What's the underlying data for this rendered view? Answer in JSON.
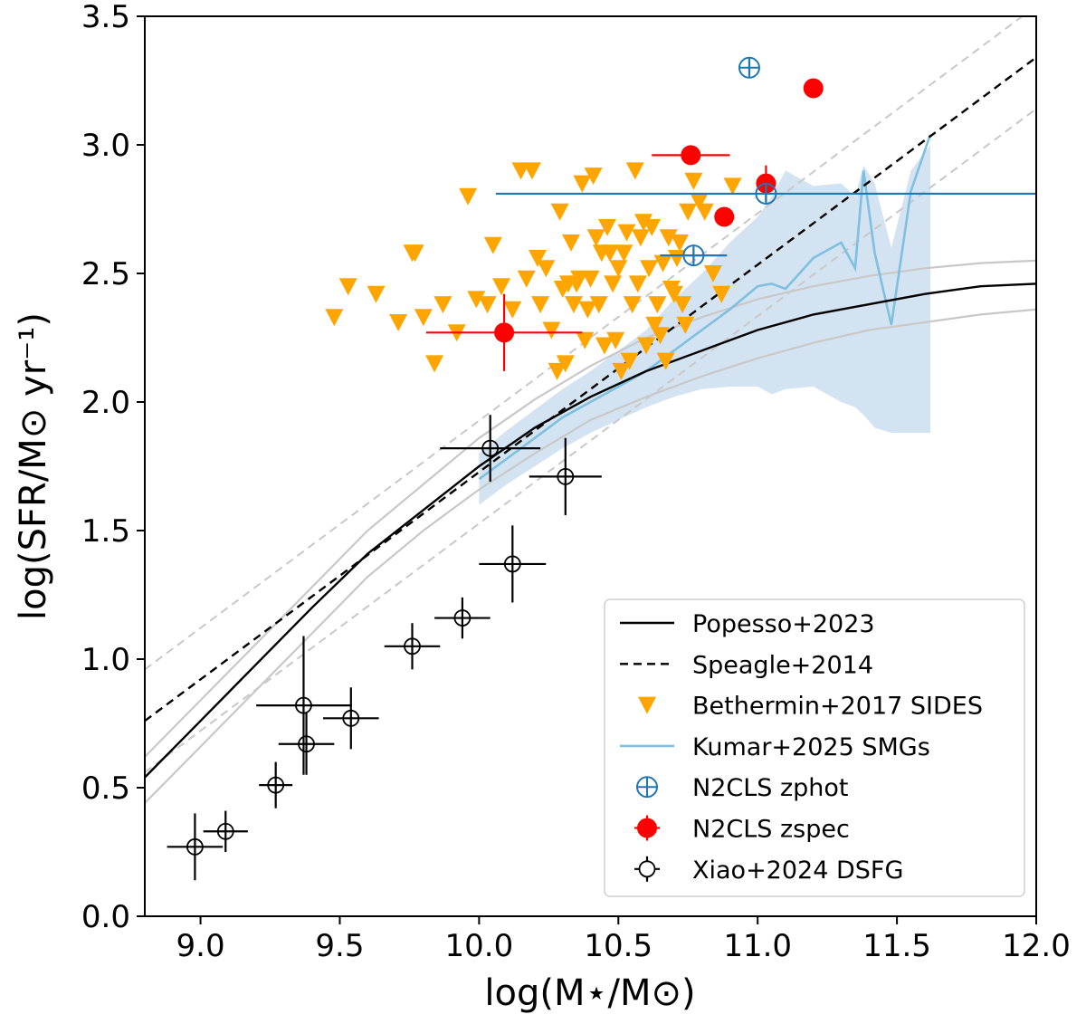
{
  "chart_data": {
    "type": "scatter",
    "xlabel": "log(M⋆/M⊙)",
    "ylabel": "log(SFR/M⊙ yr⁻¹)",
    "xlim": [
      8.8,
      12.0
    ],
    "ylim": [
      0.0,
      3.5
    ],
    "x_ticks": [
      "9.0",
      "9.5",
      "10.0",
      "10.5",
      "11.0",
      "11.5",
      "12.0"
    ],
    "y_ticks": [
      "0.0",
      "0.5",
      "1.0",
      "1.5",
      "2.0",
      "2.5",
      "3.0",
      "3.5"
    ],
    "grid": false,
    "legend_position": "lower-right",
    "colors": {
      "popesso": "#000000",
      "popesso_band": "#c8c8c8",
      "speagle": "#000000",
      "speagle_band": "#c8c8c8",
      "sides": "#ffa500",
      "kumar": "#7fbfe0",
      "kumar_band": "#c6d9ec",
      "zphot": "#1f77b4",
      "zspec": "#ff0000",
      "xiao": "#000000"
    },
    "series": [
      {
        "name": "Popesso+2023",
        "kind": "line",
        "style": "solid",
        "x": [
          8.8,
          9.0,
          9.2,
          9.4,
          9.6,
          9.8,
          10.0,
          10.2,
          10.4,
          10.6,
          10.8,
          11.0,
          11.2,
          11.4,
          11.6,
          11.8,
          12.0
        ],
        "y": [
          0.54,
          0.76,
          0.98,
          1.2,
          1.41,
          1.58,
          1.75,
          1.9,
          2.02,
          2.12,
          2.2,
          2.28,
          2.34,
          2.38,
          2.42,
          2.45,
          2.46
        ],
        "band_upper": [
          0.62,
          0.84,
          1.06,
          1.28,
          1.5,
          1.68,
          1.86,
          2.01,
          2.14,
          2.25,
          2.33,
          2.4,
          2.45,
          2.49,
          2.52,
          2.54,
          2.55
        ],
        "band_lower": [
          0.44,
          0.66,
          0.88,
          1.1,
          1.32,
          1.5,
          1.66,
          1.8,
          1.93,
          2.02,
          2.1,
          2.17,
          2.23,
          2.28,
          2.31,
          2.34,
          2.36
        ]
      },
      {
        "name": "Speagle+2014",
        "kind": "line",
        "style": "dashed",
        "x": [
          8.8,
          12.0
        ],
        "y": [
          0.76,
          3.34
        ],
        "band_upper": [
          0.96,
          3.54
        ],
        "band_lower": [
          0.56,
          3.14
        ]
      },
      {
        "name": "Bethermin+2017 SIDES",
        "kind": "scatter",
        "marker": "triangle-down",
        "x": [
          9.48,
          9.53,
          9.63,
          9.71,
          9.76,
          9.77,
          9.8,
          9.84,
          9.87,
          9.92,
          9.96,
          9.99,
          10.03,
          10.05,
          10.08,
          10.12,
          10.15,
          10.17,
          10.19,
          10.21,
          10.22,
          10.24,
          10.26,
          10.28,
          10.29,
          10.3,
          10.31,
          10.32,
          10.33,
          10.34,
          10.35,
          10.36,
          10.37,
          10.38,
          10.39,
          10.4,
          10.41,
          10.42,
          10.43,
          10.44,
          10.45,
          10.46,
          10.47,
          10.48,
          10.49,
          10.5,
          10.51,
          10.52,
          10.53,
          10.54,
          10.55,
          10.56,
          10.57,
          10.58,
          10.59,
          10.6,
          10.61,
          10.62,
          10.63,
          10.64,
          10.65,
          10.66,
          10.67,
          10.68,
          10.69,
          10.7,
          10.71,
          10.72,
          10.73,
          10.74,
          10.75,
          10.77,
          10.79,
          10.81,
          10.84,
          10.87,
          10.91
        ],
        "y": [
          2.33,
          2.45,
          2.42,
          2.31,
          2.58,
          2.58,
          2.33,
          2.15,
          2.38,
          2.27,
          2.8,
          2.4,
          2.38,
          2.61,
          2.45,
          2.36,
          2.9,
          2.48,
          2.9,
          2.56,
          2.38,
          2.52,
          2.28,
          2.12,
          2.74,
          2.44,
          2.15,
          2.46,
          2.62,
          2.38,
          2.46,
          2.48,
          2.85,
          2.24,
          2.36,
          2.48,
          2.88,
          2.64,
          2.38,
          2.58,
          2.22,
          2.68,
          2.58,
          2.46,
          2.24,
          2.52,
          2.12,
          2.58,
          2.66,
          2.16,
          2.38,
          2.9,
          2.46,
          2.64,
          2.7,
          2.22,
          2.52,
          2.68,
          2.3,
          2.38,
          2.26,
          2.54,
          2.16,
          2.64,
          2.44,
          2.42,
          2.56,
          2.62,
          2.38,
          2.3,
          2.74,
          2.86,
          2.78,
          2.74,
          2.5,
          2.42,
          2.84
        ]
      },
      {
        "name": "Kumar+2025 SMGs",
        "kind": "line",
        "style": "solid",
        "x": [
          10.0,
          10.1,
          10.2,
          10.3,
          10.4,
          10.5,
          10.6,
          10.7,
          10.8,
          10.9,
          11.0,
          11.05,
          11.1,
          11.2,
          11.3,
          11.35,
          11.38,
          11.42,
          11.48,
          11.55,
          11.62
        ],
        "y": [
          1.7,
          1.78,
          1.86,
          1.94,
          2.0,
          2.06,
          2.12,
          2.2,
          2.28,
          2.36,
          2.45,
          2.46,
          2.44,
          2.56,
          2.62,
          2.52,
          2.9,
          2.58,
          2.3,
          2.82,
          3.04
        ],
        "band_upper": [
          1.8,
          1.89,
          1.97,
          2.05,
          2.12,
          2.2,
          2.28,
          2.4,
          2.5,
          2.62,
          2.72,
          2.8,
          2.9,
          2.84,
          2.85,
          2.8,
          2.92,
          2.85,
          2.6,
          2.9,
          3.0
        ],
        "band_lower": [
          1.6,
          1.68,
          1.75,
          1.82,
          1.88,
          1.93,
          1.98,
          2.02,
          2.05,
          2.06,
          2.06,
          2.03,
          2.05,
          2.06,
          2.0,
          1.98,
          1.95,
          1.9,
          1.88,
          1.88,
          1.88
        ]
      },
      {
        "name": "N2CLS zphot",
        "kind": "errorbar",
        "marker": "circle-plus",
        "points": [
          {
            "x": 10.97,
            "y": 3.3,
            "xerr": 0.0,
            "yerr": 0.03
          },
          {
            "x": 11.03,
            "y": 2.81,
            "xerr_left": 0.97,
            "xerr_right": 0.97,
            "yerr": 0.03
          },
          {
            "x": 10.77,
            "y": 2.57,
            "xerr": 0.12,
            "yerr": 0.03
          }
        ]
      },
      {
        "name": "N2CLS zspec",
        "kind": "errorbar",
        "marker": "circle-filled",
        "points": [
          {
            "x": 11.2,
            "y": 3.22,
            "xerr": 0.0,
            "yerr": 0.0
          },
          {
            "x": 10.76,
            "y": 2.96,
            "xerr": 0.14,
            "yerr": 0.0
          },
          {
            "x": 11.03,
            "y": 2.85,
            "xerr": 0.0,
            "yerr": 0.07
          },
          {
            "x": 10.88,
            "y": 2.72,
            "xerr": 0.0,
            "yerr": 0.0
          },
          {
            "x": 10.09,
            "y": 2.27,
            "xerr": 0.28,
            "yerr": 0.15
          }
        ]
      },
      {
        "name": "Xiao+2024 DSFG",
        "kind": "errorbar",
        "marker": "open-circle",
        "points": [
          {
            "x": 8.98,
            "y": 0.27,
            "xerr": 0.1,
            "yerr": 0.13
          },
          {
            "x": 9.09,
            "y": 0.33,
            "xerr": 0.08,
            "yerr": 0.08
          },
          {
            "x": 9.27,
            "y": 0.51,
            "xerr": 0.06,
            "yerr": 0.09
          },
          {
            "x": 9.37,
            "y": 0.82,
            "xerr": 0.17,
            "yerr": 0.27
          },
          {
            "x": 9.38,
            "y": 0.67,
            "xerr": 0.1,
            "yerr": 0.12
          },
          {
            "x": 9.54,
            "y": 0.77,
            "xerr": 0.1,
            "yerr": 0.12
          },
          {
            "x": 9.76,
            "y": 1.05,
            "xerr": 0.1,
            "yerr": 0.09
          },
          {
            "x": 9.94,
            "y": 1.16,
            "xerr": 0.1,
            "yerr": 0.08
          },
          {
            "x": 10.12,
            "y": 1.37,
            "xerr": 0.12,
            "yerr": 0.15
          },
          {
            "x": 10.04,
            "y": 1.82,
            "xerr": 0.18,
            "yerr": 0.13
          },
          {
            "x": 10.31,
            "y": 1.71,
            "xerr": 0.13,
            "yerr": 0.15
          }
        ]
      }
    ],
    "legend": [
      {
        "label": "Popesso+2023",
        "icon": "solid-line"
      },
      {
        "label": "Speagle+2014",
        "icon": "dashed-line"
      },
      {
        "label": "Bethermin+2017 SIDES",
        "icon": "triangle-down"
      },
      {
        "label": "Kumar+2025 SMGs",
        "icon": "light-line"
      },
      {
        "label": "N2CLS zphot",
        "icon": "circle-plus"
      },
      {
        "label": "N2CLS zspec",
        "icon": "circle-filled"
      },
      {
        "label": "Xiao+2024 DSFG",
        "icon": "open-circle"
      }
    ]
  }
}
